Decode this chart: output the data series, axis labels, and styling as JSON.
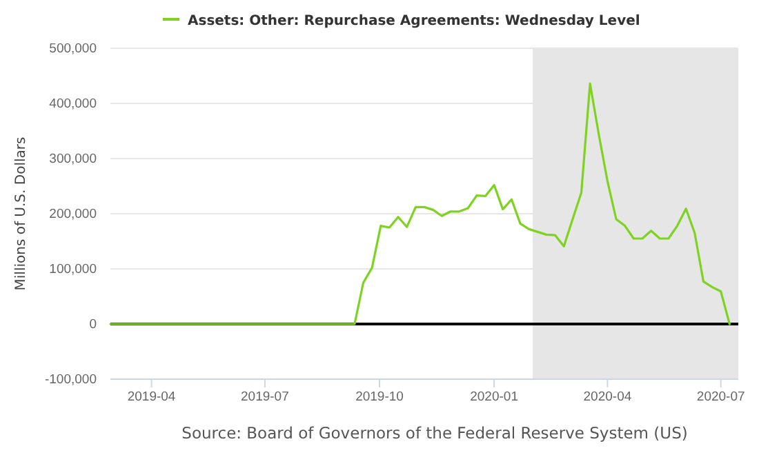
{
  "chart_data": {
    "type": "line",
    "ylabel": "Millions of U.S. Dollars",
    "annotations": [
      "Source: Board of Governors of the Federal Reserve System (US)"
    ],
    "x": [
      "2019-02-27",
      "2019-09-11",
      "2019-09-18",
      "2019-09-25",
      "2019-10-02",
      "2019-10-09",
      "2019-10-16",
      "2019-10-23",
      "2019-10-30",
      "2019-11-06",
      "2019-11-13",
      "2019-11-20",
      "2019-11-27",
      "2019-12-04",
      "2019-12-11",
      "2019-12-18",
      "2019-12-25",
      "2020-01-01",
      "2020-01-08",
      "2020-01-15",
      "2020-01-22",
      "2020-01-29",
      "2020-02-05",
      "2020-02-12",
      "2020-02-19",
      "2020-02-26",
      "2020-03-04",
      "2020-03-11",
      "2020-03-18",
      "2020-03-25",
      "2020-04-01",
      "2020-04-08",
      "2020-04-15",
      "2020-04-22",
      "2020-04-29",
      "2020-05-06",
      "2020-05-13",
      "2020-05-20",
      "2020-05-27",
      "2020-06-03",
      "2020-06-10",
      "2020-06-17",
      "2020-06-24",
      "2020-07-01",
      "2020-07-08"
    ],
    "series": [
      {
        "name": "Assets: Other: Repurchase Agreements: Wednesday Level",
        "color": "#7ed321",
        "values": [
          0,
          0,
          75000,
          102000,
          178000,
          175000,
          194000,
          176000,
          212000,
          212000,
          207000,
          196000,
          204000,
          204000,
          210000,
          233000,
          232000,
          252000,
          208000,
          226000,
          182000,
          172000,
          167000,
          162000,
          161000,
          141000,
          190000,
          238000,
          436000,
          344000,
          259000,
          190000,
          178000,
          155000,
          155000,
          169000,
          155000,
          155000,
          178000,
          209000,
          165000,
          77000,
          67000,
          59000,
          0
        ]
      }
    ],
    "xlim": [
      "2019-02-27",
      "2020-07-15"
    ],
    "xticks": [
      {
        "value": "2019-04-01",
        "label": "2019-04"
      },
      {
        "value": "2019-07-01",
        "label": "2019-07"
      },
      {
        "value": "2019-10-01",
        "label": "2019-10"
      },
      {
        "value": "2020-01-01",
        "label": "2020-01"
      },
      {
        "value": "2020-04-01",
        "label": "2020-04"
      },
      {
        "value": "2020-07-01",
        "label": "2020-07"
      }
    ],
    "ylim": [
      -100000,
      500000
    ],
    "yticks": [
      {
        "value": -100000,
        "label": "-100,000"
      },
      0,
      {
        "value": 100000,
        "label": "100,000"
      },
      {
        "value": 200000,
        "label": "200,000"
      },
      {
        "value": 300000,
        "label": "300,000"
      },
      {
        "value": 400000,
        "label": "400,000"
      },
      {
        "value": 500000,
        "label": "500,000"
      }
    ],
    "ref_lines": [
      {
        "axis": "y",
        "value": 0,
        "label": null,
        "color": "#000000"
      }
    ],
    "bands": [
      {
        "axis": "x",
        "from": "2020-02-01",
        "to": "2020-07-15",
        "label": null,
        "color": "#e6e6e6"
      }
    ],
    "grid": "y",
    "legend": "top left",
    "marker": "none",
    "line_style": "solid"
  }
}
